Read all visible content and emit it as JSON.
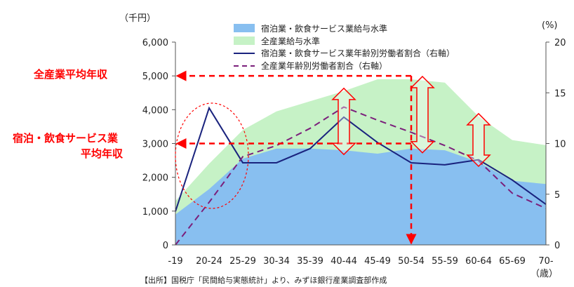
{
  "chart_data": {
    "type": "area",
    "categories": [
      "-19",
      "20-24",
      "25-29",
      "30-34",
      "35-39",
      "40-44",
      "45-49",
      "50-54",
      "55-59",
      "60-64",
      "65-69",
      "70-"
    ],
    "y_left": {
      "unit_label": "（千円）",
      "ylim": [
        0,
        6000
      ],
      "ticks": [
        "0",
        "1,000",
        "2,000",
        "3,000",
        "4,000",
        "5,000",
        "6,000"
      ]
    },
    "y_right": {
      "unit_label": "(%)",
      "ylim": [
        0,
        20
      ],
      "ticks": [
        "0",
        "5",
        "10",
        "15",
        "20"
      ]
    },
    "x_unit_label": "（歳）",
    "series": [
      {
        "name": "宿泊業・飲食サービス業給与水準",
        "type": "area",
        "axis": "left",
        "color": "#88bff0",
        "values": [
          900,
          1650,
          2550,
          2850,
          2850,
          2800,
          2700,
          2850,
          2800,
          2450,
          1900,
          1800
        ]
      },
      {
        "name": "全産業給与水準",
        "type": "area",
        "axis": "left",
        "color": "#c6f2c6",
        "values": [
          1300,
          2400,
          3400,
          3950,
          4250,
          4550,
          4900,
          4900,
          4800,
          3800,
          3100,
          2950
        ]
      },
      {
        "name": "宿泊業・飲食サービス業年齢別労働者割合（右軸）",
        "type": "line",
        "axis": "right",
        "color": "#1a237e",
        "dash": false,
        "values": [
          3.3,
          13.5,
          8.1,
          8.1,
          9.5,
          12.6,
          10.1,
          8.1,
          7.9,
          8.4,
          6.4,
          4.0
        ]
      },
      {
        "name": "全産業年齢別労働者割合（右軸）",
        "type": "line",
        "axis": "right",
        "color": "#7b1f7b",
        "dash": true,
        "values": [
          0.0,
          4.2,
          8.7,
          9.8,
          11.5,
          13.6,
          12.3,
          11.1,
          9.8,
          8.3,
          5.1,
          3.6
        ]
      }
    ],
    "annotations": {
      "all_industry_avg_label": "全産業平均年収",
      "all_industry_avg_value": 5000,
      "hospitality_avg_label_line1": "宿泊・飲食サービス業",
      "hospitality_avg_label_line2": "平均年収",
      "hospitality_avg_value": 3000,
      "vertical_marker_category": "50-54",
      "gap_arrows_categories": [
        "40-44",
        "50-54",
        "60-64"
      ]
    },
    "source": "【出所】国税庁「民間給与実態統計」より、みずほ銀行産業調査部作成"
  }
}
